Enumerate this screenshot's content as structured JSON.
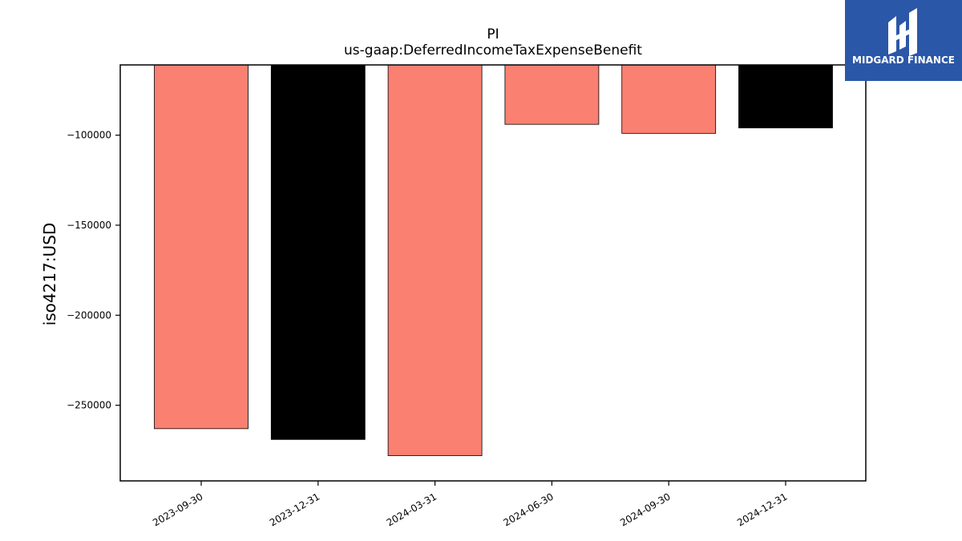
{
  "chart_data": {
    "type": "bar",
    "title": "PI",
    "subtitle": "us-gaap:DeferredIncomeTaxExpenseBenefit",
    "xlabel": "",
    "ylabel": "iso4217:USD",
    "categories": [
      "2023-09-30",
      "2023-12-31",
      "2024-03-31",
      "2024-06-30",
      "2024-09-30",
      "2024-12-31"
    ],
    "values": [
      -263000,
      -269000,
      -278000,
      -94000,
      -99000,
      -96000
    ],
    "bar_colors": [
      "#fa8072",
      "#000000",
      "#fa8072",
      "#fa8072",
      "#fa8072",
      "#000000"
    ],
    "yticks": [
      -250000,
      -200000,
      -150000,
      -100000
    ],
    "ytick_labels": [
      "−250000",
      "−200000",
      "−150000",
      "−100000"
    ],
    "ylim": [
      -292000,
      -61000
    ],
    "grid": false
  },
  "logo": {
    "text": "MIDGARD FINANCE",
    "color": "#2b57a8"
  }
}
